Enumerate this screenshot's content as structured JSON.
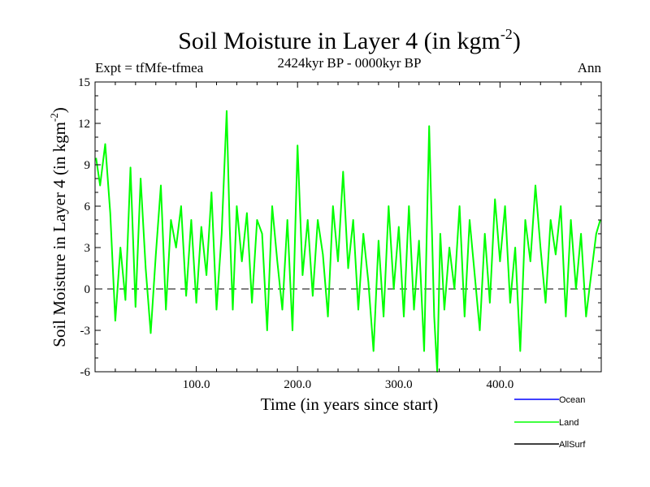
{
  "chart_data": {
    "type": "line",
    "title": "Soil Moisture in Layer 4 (in kgm",
    "title_superscript": "-2",
    "title_suffix": ")",
    "subtitle": "2424kyr BP - 0000kyr BP",
    "left_label": "Expt = tfMfe-tfmea",
    "right_label": "Ann",
    "xlabel": "Time (in years since start)",
    "ylabel": "Soil Moisture in Layer 4 (in kgm",
    "ylabel_superscript": "-2",
    "ylabel_suffix": ")",
    "xlim": [
      0,
      500
    ],
    "ylim": [
      -6,
      15
    ],
    "xticks": [
      100,
      200,
      300,
      400
    ],
    "xtick_labels": [
      "100.0",
      "200.0",
      "300.0",
      "400.0"
    ],
    "yticks": [
      -6,
      -3,
      0,
      3,
      6,
      9,
      12,
      15
    ],
    "ytick_labels": [
      "-6",
      "-3",
      "0",
      "3",
      "6",
      "9",
      "12",
      "15"
    ],
    "zero_line": 0,
    "legend": [
      {
        "name": "Ocean",
        "color": "#0000ff"
      },
      {
        "name": "Land",
        "color": "#00ff00"
      },
      {
        "name": "AllSurf",
        "color": "#000000"
      }
    ],
    "series": [
      {
        "name": "Land",
        "color": "#00ff00",
        "x": [
          1,
          5,
          10,
          15,
          20,
          25,
          30,
          35,
          40,
          45,
          50,
          55,
          60,
          65,
          70,
          75,
          80,
          85,
          90,
          95,
          100,
          105,
          110,
          115,
          120,
          125,
          130,
          133,
          136,
          140,
          145,
          150,
          155,
          160,
          165,
          170,
          175,
          180,
          185,
          190,
          195,
          200,
          205,
          210,
          215,
          220,
          225,
          230,
          235,
          240,
          245,
          250,
          255,
          260,
          265,
          270,
          275,
          280,
          285,
          290,
          295,
          300,
          305,
          310,
          315,
          320,
          325,
          330,
          335,
          338,
          341,
          345,
          350,
          355,
          360,
          365,
          370,
          375,
          380,
          385,
          390,
          395,
          400,
          405,
          410,
          415,
          420,
          425,
          430,
          435,
          440,
          445,
          450,
          455,
          460,
          465,
          470,
          475,
          480,
          485,
          490,
          495,
          499
        ],
        "y": [
          9.5,
          7.5,
          10.5,
          5.5,
          -2.3,
          3,
          -0.8,
          8.8,
          -1.3,
          8,
          1.5,
          -3.2,
          2.5,
          7.5,
          -1.5,
          5,
          3,
          6,
          -0.5,
          5,
          -1,
          4.5,
          1,
          7,
          -1.5,
          4,
          12.9,
          4.5,
          -1.5,
          6,
          2,
          5.5,
          -1,
          5,
          4,
          -3,
          6,
          2,
          -1.5,
          5,
          -3,
          10.4,
          1,
          5,
          -0.5,
          5,
          2.5,
          -2,
          6,
          2,
          8.5,
          1.5,
          5,
          -1.5,
          4,
          0.5,
          -4.5,
          3.5,
          -2,
          6,
          0,
          4.5,
          -2,
          6,
          -1.5,
          3.5,
          -4.5,
          11.8,
          -2,
          -6,
          4,
          -1.5,
          3,
          0,
          6,
          -2,
          5,
          1,
          -3,
          4,
          -1,
          6.5,
          2,
          6,
          -1,
          3,
          -4.5,
          5,
          2,
          7.5,
          3,
          -1,
          5,
          2.5,
          6,
          -2,
          5,
          0,
          4,
          -2,
          1,
          4,
          5
        ]
      },
      {
        "name": "Ocean",
        "color": "#0000ff",
        "x": [],
        "y": []
      },
      {
        "name": "AllSurf",
        "color": "#000000",
        "x": [],
        "y": []
      }
    ]
  }
}
